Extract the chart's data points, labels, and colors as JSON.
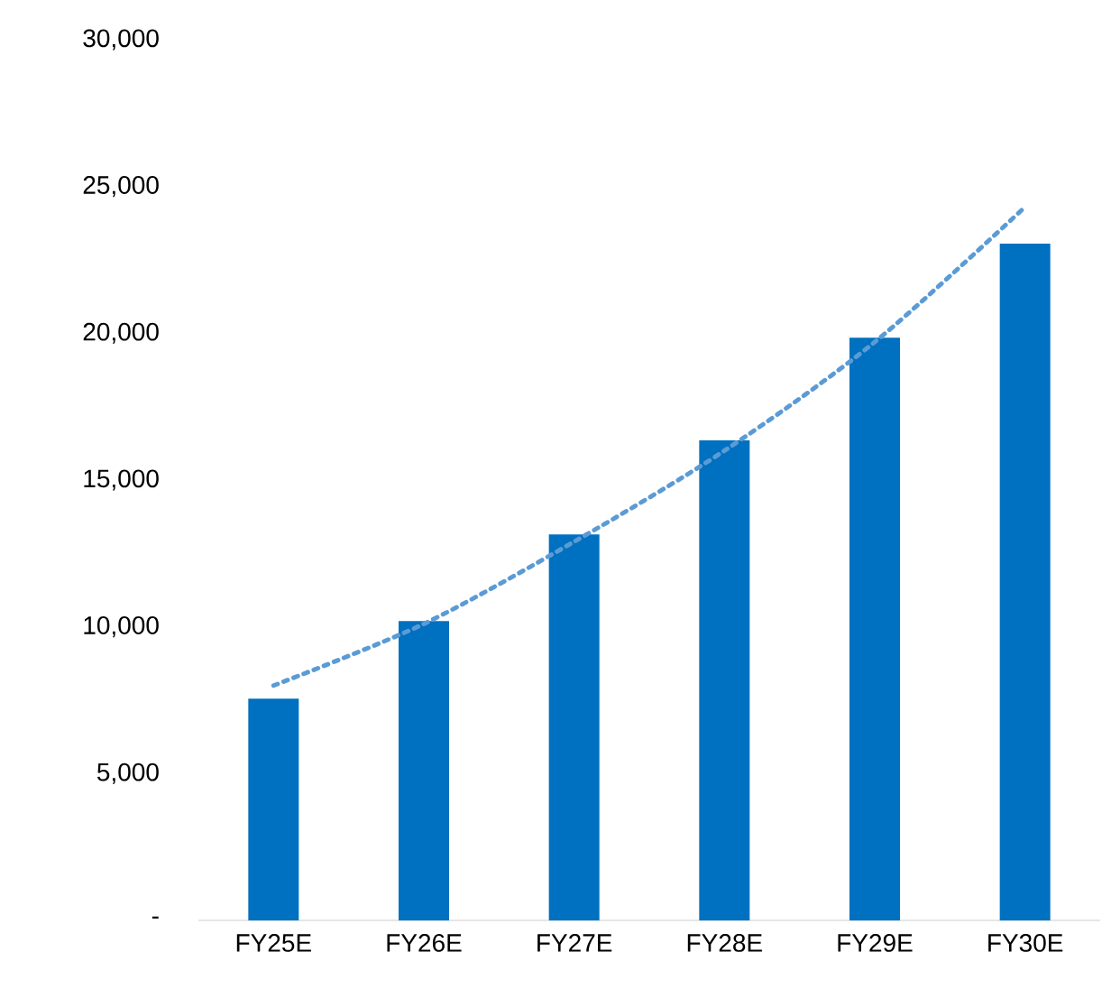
{
  "chart_data": {
    "type": "bar",
    "categories": [
      "FY25E",
      "FY26E",
      "FY27E",
      "FY28E",
      "FY29E",
      "FY30E"
    ],
    "series": [
      {
        "color": "#0070c0",
        "values": [
          7550,
          10200,
          13150,
          16350,
          19850,
          23050
        ]
      },
      {
        "type": "line",
        "color": "#5b9bd5",
        "line_style": "dotted",
        "marker": "none",
        "values": [
          8000,
          10100,
          12900,
          16000,
          19700,
          24300
        ]
      }
    ],
    "ylim": [
      0,
      30000
    ],
    "yticks": [
      {
        "value": 0,
        "label": "-"
      },
      {
        "value": 5000,
        "label": "5,000"
      },
      {
        "value": 10000,
        "label": "10,000"
      },
      {
        "value": 15000,
        "label": "15,000"
      },
      {
        "value": 20000,
        "label": "20,000"
      },
      {
        "value": 25000,
        "label": "25,000"
      },
      {
        "value": 30000,
        "label": "30,000"
      }
    ],
    "grid": false
  }
}
